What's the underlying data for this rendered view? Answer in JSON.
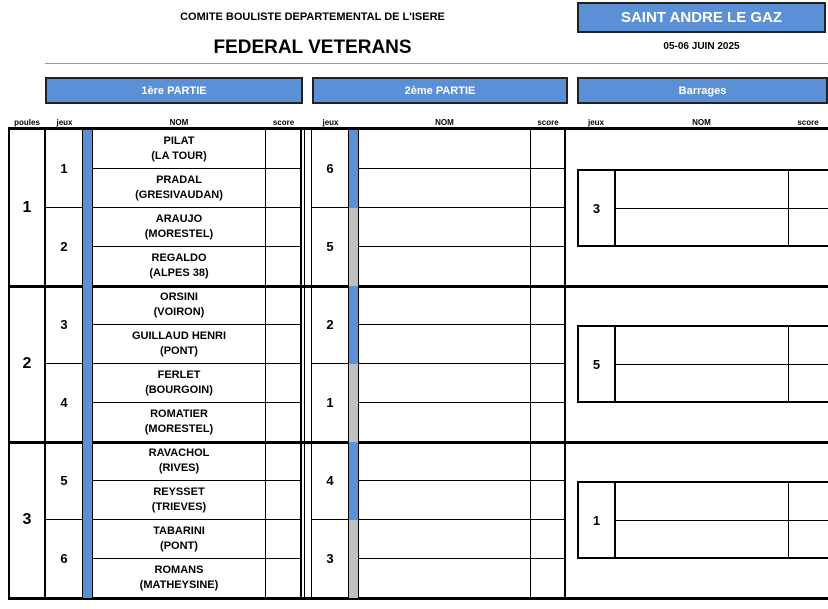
{
  "header": {
    "committee": "COMITE BOULISTE DEPARTEMENTAL DE L'ISERE",
    "title": "FEDERAL VETERANS",
    "venue": "SAINT ANDRE LE GAZ",
    "dates": "05-06 JUIN 2025"
  },
  "sections": {
    "part1": "1ère PARTIE",
    "part2": "2ème PARTIE",
    "barrages": "Barrages"
  },
  "columns": {
    "poules": "poules",
    "jeux": "jeux",
    "nom": "NOM",
    "score": "score"
  },
  "colors": {
    "accent": "#5b8fd6",
    "gray_bar": "#c0c0c0"
  },
  "poules": [
    {
      "num": "1",
      "games": [
        {
          "jeu": "1",
          "teams": [
            [
              "PILAT",
              "(LA TOUR)"
            ],
            [
              "PRADAL",
              "(GRESIVAUDAN)"
            ]
          ],
          "jeu2": "6",
          "bar2": "blue"
        },
        {
          "jeu": "2",
          "teams": [
            [
              "ARAUJO",
              "(MORESTEL)"
            ],
            [
              "REGALDO",
              "(ALPES 38)"
            ]
          ],
          "jeu2": "5",
          "bar2": "gray"
        }
      ],
      "barrage_jeu": "3"
    },
    {
      "num": "2",
      "games": [
        {
          "jeu": "3",
          "teams": [
            [
              "ORSINI",
              "(VOIRON)"
            ],
            [
              "GUILLAUD HENRI",
              "(PONT)"
            ]
          ],
          "jeu2": "2",
          "bar2": "blue"
        },
        {
          "jeu": "4",
          "teams": [
            [
              "FERLET",
              "(BOURGOIN)"
            ],
            [
              "ROMATIER",
              "(MORESTEL)"
            ]
          ],
          "jeu2": "1",
          "bar2": "gray"
        }
      ],
      "barrage_jeu": "5"
    },
    {
      "num": "3",
      "games": [
        {
          "jeu": "5",
          "teams": [
            [
              "RAVACHOL",
              "(RIVES)"
            ],
            [
              "REYSSET",
              "(TRIEVES)"
            ]
          ],
          "jeu2": "4",
          "bar2": "blue"
        },
        {
          "jeu": "6",
          "teams": [
            [
              "TABARINI",
              "(PONT)"
            ],
            [
              "ROMANS",
              "(MATHEYSINE)"
            ]
          ],
          "jeu2": "3",
          "bar2": "gray"
        }
      ],
      "barrage_jeu": "1"
    }
  ]
}
